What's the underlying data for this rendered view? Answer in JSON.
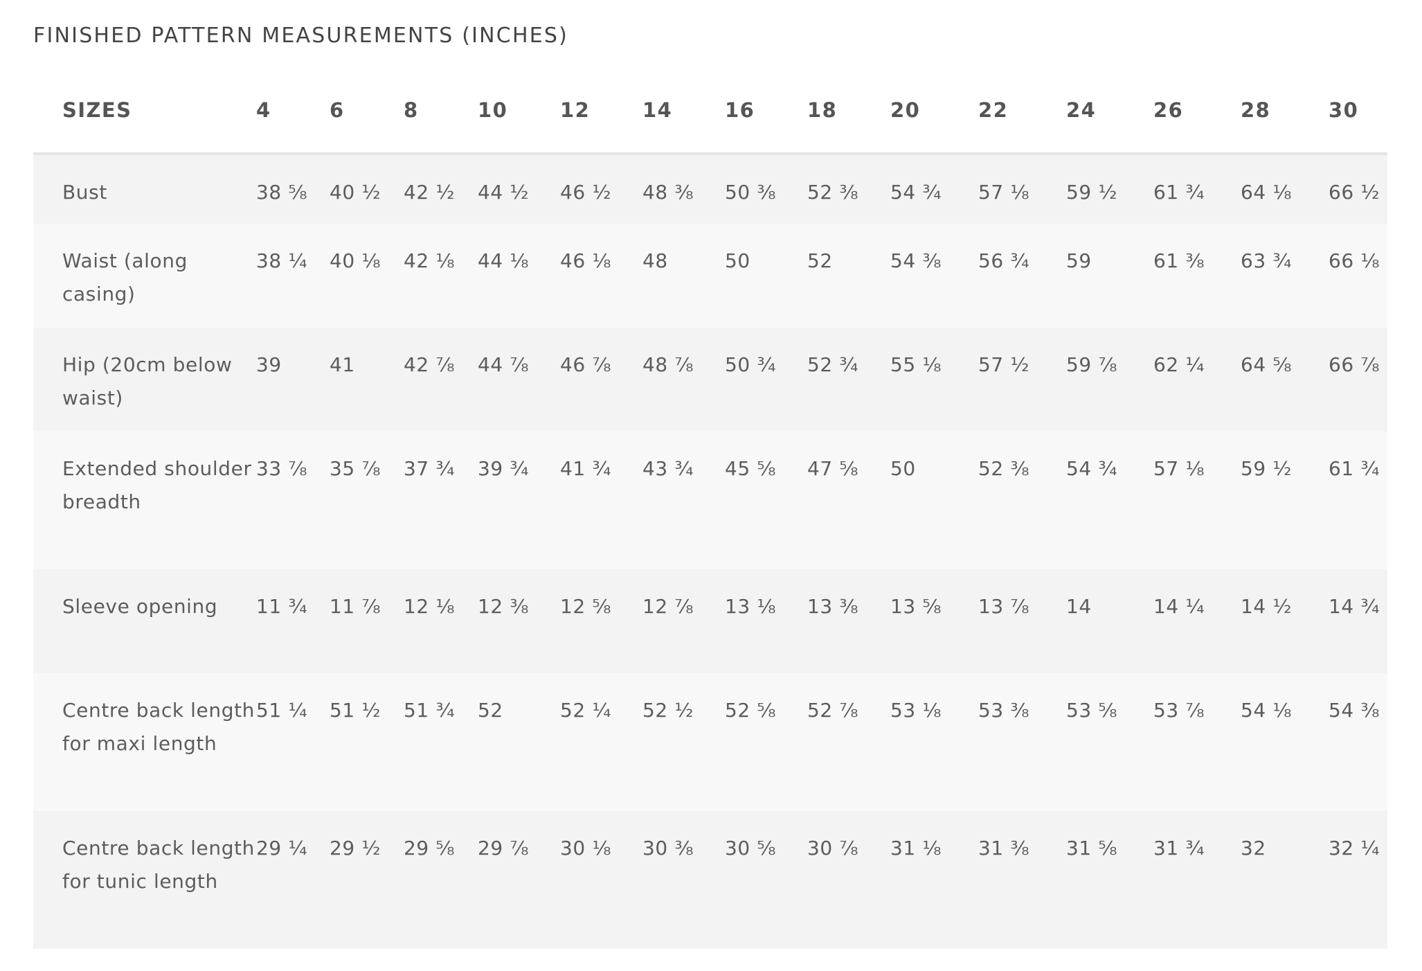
{
  "title": "FINISHED PATTERN MEASUREMENTS (INCHES)",
  "header": {
    "label": "SIZES",
    "sizes": [
      "4",
      "6",
      "8",
      "10",
      "12",
      "14",
      "16",
      "18",
      "20",
      "22",
      "24",
      "26",
      "28",
      "30"
    ]
  },
  "rows": [
    {
      "label": "Bust",
      "values": [
        "38 ⅝",
        "40 ½",
        "42 ½",
        "44 ½",
        "46 ½",
        "48 ⅜",
        "50 ⅜",
        "52 ⅜",
        "54 ¾",
        "57 ⅛",
        "59 ½",
        "61 ¾",
        "64 ⅛",
        "66 ½"
      ]
    },
    {
      "label": "Waist (along casing)",
      "values": [
        "38 ¼",
        "40 ⅛",
        "42 ⅛",
        "44 ⅛",
        "46 ⅛",
        "48",
        "50",
        "52",
        "54 ⅜",
        "56 ¾",
        "59",
        "61 ⅜",
        "63 ¾",
        "66 ⅛"
      ]
    },
    {
      "label": "Hip (20cm below waist)",
      "values": [
        "39",
        "41",
        "42 ⅞",
        "44 ⅞",
        "46 ⅞",
        "48 ⅞",
        "50 ¾",
        "52 ¾",
        "55 ⅛",
        "57 ½",
        "59 ⅞",
        "62 ¼",
        "64 ⅝",
        "66 ⅞"
      ]
    },
    {
      "label": "Extended shoulder breadth",
      "values": [
        "33 ⅞",
        "35 ⅞",
        "37 ¾",
        "39 ¾",
        "41 ¾",
        "43 ¾",
        "45 ⅝",
        "47 ⅝",
        "50",
        "52 ⅜",
        "54 ¾",
        "57 ⅛",
        "59 ½",
        "61 ¾"
      ]
    },
    {
      "label": "Sleeve opening",
      "values": [
        "11 ¾",
        "11 ⅞",
        "12 ⅛",
        "12 ⅜",
        "12 ⅝",
        "12 ⅞",
        "13 ⅛",
        "13 ⅜",
        "13 ⅝",
        "13 ⅞",
        "14",
        "14 ¼",
        "14 ½",
        "14 ¾"
      ]
    },
    {
      "label": "Centre back length for maxi length",
      "values": [
        "51 ¼",
        "51 ½",
        "51 ¾",
        "52",
        "52 ¼",
        "52 ½",
        "52 ⅝",
        "52 ⅞",
        "53 ⅛",
        "53 ⅜",
        "53 ⅝",
        "53 ⅞",
        "54 ⅛",
        "54 ⅜"
      ]
    },
    {
      "label": "Centre back length for tunic length",
      "values": [
        "29 ¼",
        "29 ½",
        "29 ⅝",
        "29 ⅞",
        "30 ⅛",
        "30 ⅜",
        "30 ⅝",
        "30 ⅞",
        "31 ⅛",
        "31 ⅜",
        "31 ⅝",
        "31 ¾",
        "32",
        "32 ¼"
      ]
    }
  ]
}
